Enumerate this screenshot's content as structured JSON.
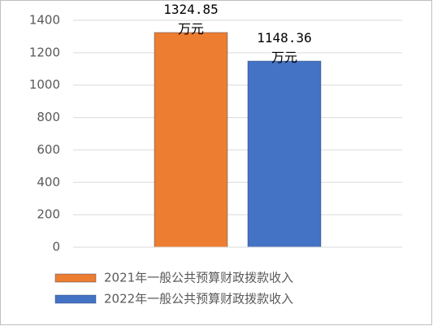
{
  "chart_data": {
    "type": "bar",
    "categories": [
      null
    ],
    "series": [
      {
        "name": "2021年一般公共预算财政拨款收入",
        "color": "#ed7d31",
        "values": [
          1324.85
        ],
        "value_labels": [
          "1324.85万元"
        ]
      },
      {
        "name": "2022年一般公共预算财政拨款收入",
        "color": "#4472c4",
        "values": [
          1148.36
        ],
        "value_labels": [
          "1148.36万元"
        ]
      }
    ],
    "ylim": [
      0,
      1400
    ],
    "yticks": [
      0,
      200,
      400,
      600,
      800,
      1000,
      1200,
      1400
    ],
    "grid": true,
    "legend": "bottom"
  }
}
